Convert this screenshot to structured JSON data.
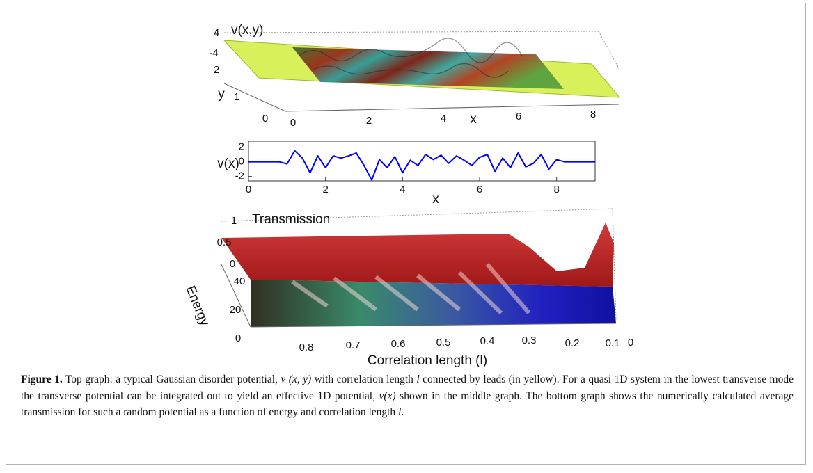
{
  "figure": {
    "top": {
      "type": "surface3d",
      "z_label": "v(x,y)",
      "y_label": "y",
      "x_label": "x",
      "zticks": [
        4,
        -4
      ],
      "yticks": [
        2,
        1,
        0
      ],
      "xticks": [
        0,
        2,
        4,
        6,
        8
      ]
    },
    "middle": {
      "type": "line",
      "y_label": "v(x)",
      "x_label": "x",
      "color": "#0000ff",
      "x": [
        0,
        0.2,
        0.4,
        0.6,
        0.8,
        1.0,
        1.2,
        1.4,
        1.6,
        1.8,
        2.0,
        2.2,
        2.4,
        2.6,
        2.8,
        3.0,
        3.2,
        3.4,
        3.6,
        3.8,
        4.0,
        4.2,
        4.4,
        4.6,
        4.8,
        5.0,
        5.2,
        5.4,
        5.6,
        5.8,
        6.0,
        6.2,
        6.4,
        6.6,
        6.8,
        7.0,
        7.2,
        7.4,
        7.6,
        7.8,
        8.0,
        8.2,
        8.4,
        8.6,
        8.8,
        9.0
      ],
      "values": [
        0,
        0,
        0,
        0,
        0,
        -0.3,
        1.5,
        0.5,
        -1.5,
        0.8,
        -0.8,
        0.8,
        0.5,
        0.8,
        1.2,
        -0.5,
        -2.5,
        0.3,
        -0.8,
        0.7,
        -1.5,
        0.2,
        -0.5,
        1.0,
        0.3,
        0.9,
        -0.2,
        0.8,
        0.2,
        -0.5,
        0.6,
        1.0,
        -1.3,
        0.5,
        -0.8,
        1.2,
        -0.7,
        -0.2,
        1.0,
        -1.0,
        0.3,
        0,
        0,
        0,
        0,
        0
      ],
      "xlim": [
        0,
        9
      ],
      "ylim": [
        -2.6,
        2.8
      ],
      "xticks": [
        0,
        2,
        4,
        6,
        8
      ],
      "yticks": [
        2,
        0,
        -2
      ]
    },
    "bottom": {
      "type": "surface3d",
      "z_label": "Transmission",
      "y_label": "Energy",
      "x_label": "Correlation length (l)",
      "zticks": [
        1,
        0.5,
        0
      ],
      "yticks": [
        40,
        20,
        0
      ],
      "xticks": [
        0.8,
        0.7,
        0.6,
        0.5,
        0.4,
        0.3,
        0.2,
        0.1,
        0
      ]
    }
  },
  "caption": {
    "label": "Figure 1.",
    "text": [
      " Top graph: a typical Gaussian disorder potential, ",
      "v (x,  y)",
      " with correlation length ",
      "l",
      " connected by leads (in yellow). For a quasi 1D system in the lowest transverse mode the transverse potential can be integrated out to yield an effective 1D potential, ",
      "v(x)",
      " shown in the middle graph. The bottom graph shows the numerically calculated average transmission for such a random potential as a function of energy and correlation length ",
      "l",
      "."
    ]
  }
}
